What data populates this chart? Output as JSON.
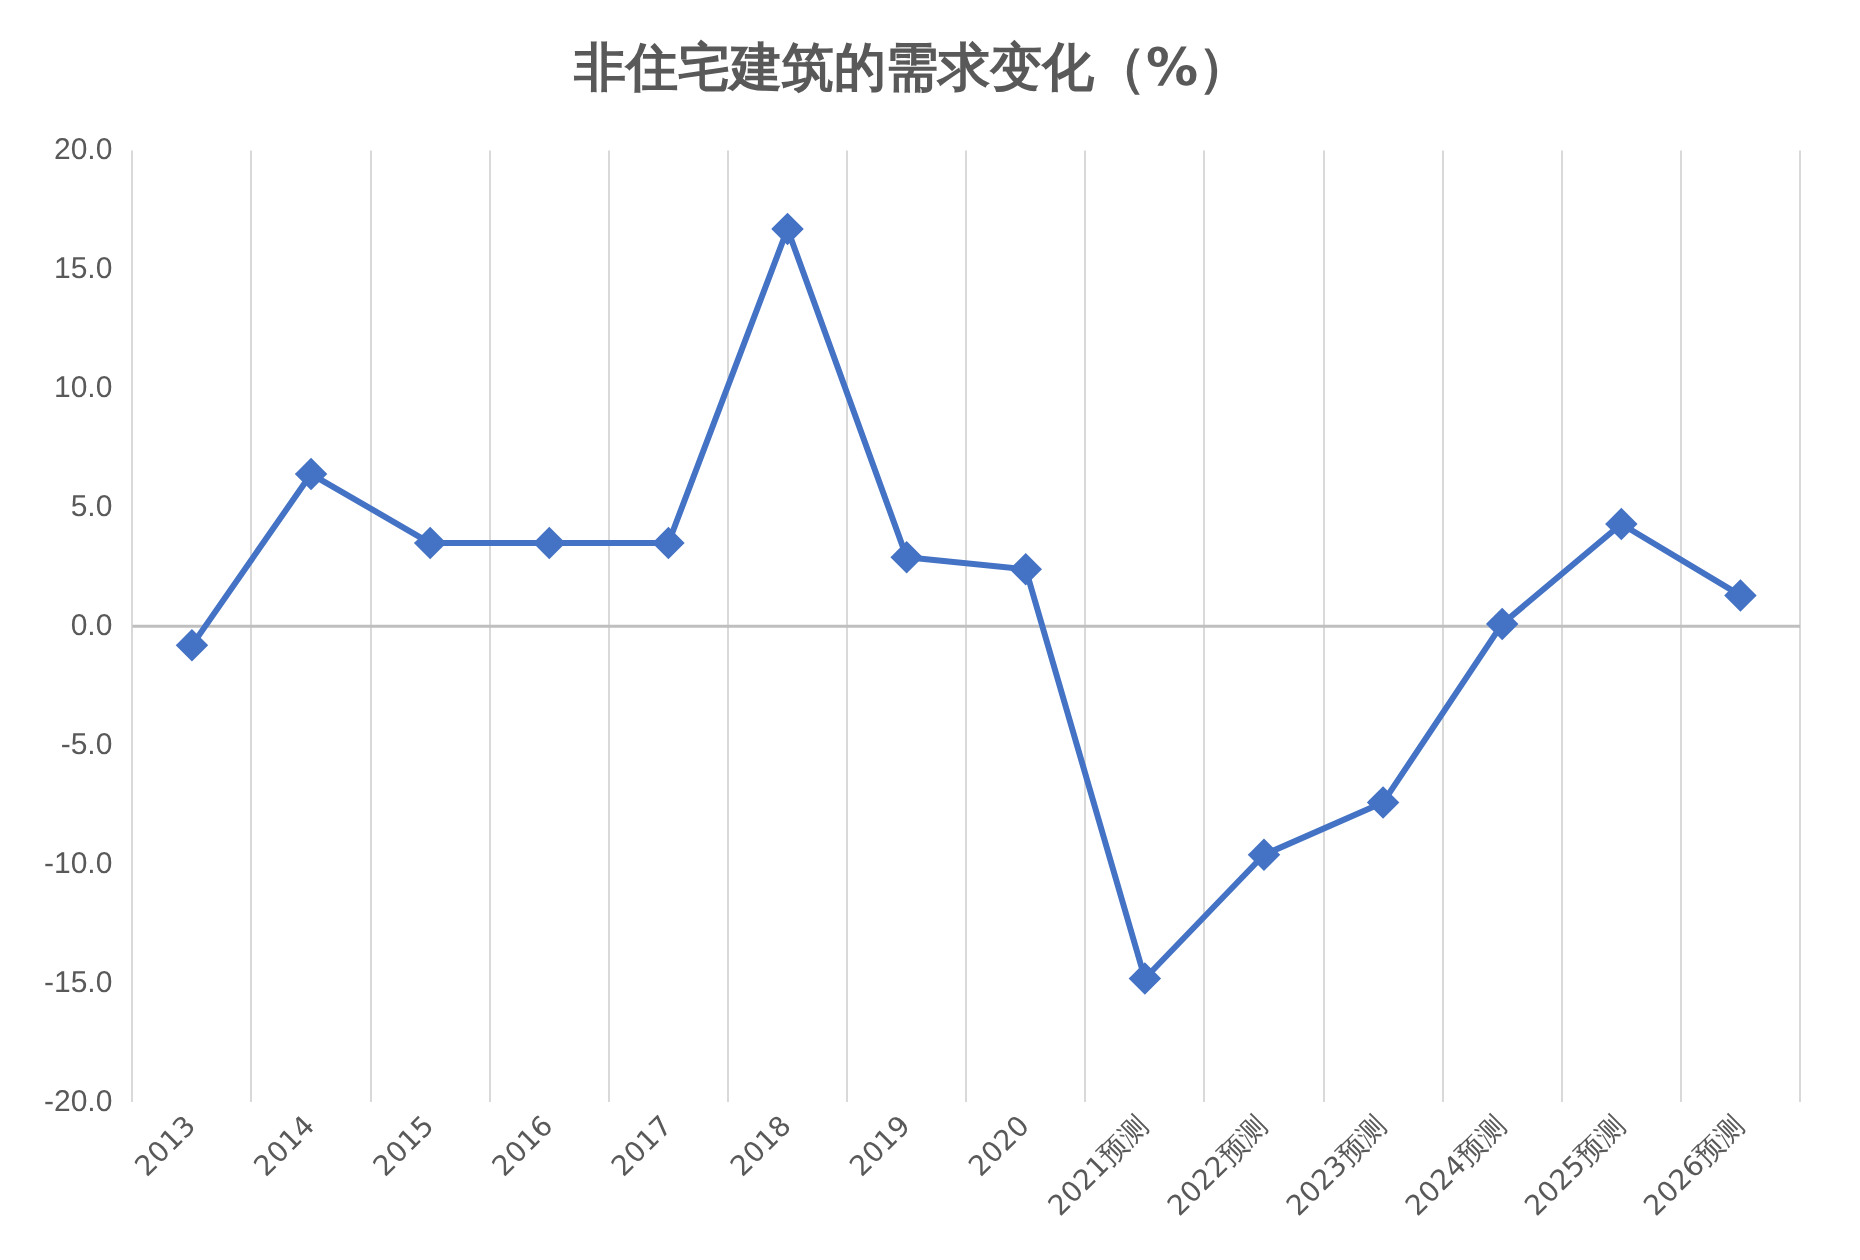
{
  "chart_data": {
    "type": "line",
    "title": "非住宅建筑的需求变化（%）",
    "categories": [
      "2013",
      "2014",
      "2015",
      "2016",
      "2017",
      "2018",
      "2019",
      "2020",
      "2021预测",
      "2022预测",
      "2023预测",
      "2024预测",
      "2025预测",
      "2026预测"
    ],
    "series": [
      {
        "color": "#4472c4",
        "values": [
          -0.8,
          6.4,
          3.5,
          3.5,
          3.5,
          16.7,
          2.9,
          2.4,
          -14.8,
          -9.6,
          -7.4,
          0.1,
          4.3,
          1.3
        ]
      }
    ],
    "ylim": [
      -20,
      20
    ],
    "yticks": [
      {
        "value": -20,
        "label": "-20.0"
      },
      {
        "value": -15,
        "label": "-15.0"
      },
      {
        "value": -10,
        "label": "-10.0"
      },
      {
        "value": -5,
        "label": "-5.0"
      },
      {
        "value": 0,
        "label": "0.0"
      },
      {
        "value": 5,
        "label": "5.0"
      },
      {
        "value": 10,
        "label": "10.0"
      },
      {
        "value": 15,
        "label": "15.0"
      },
      {
        "value": 20,
        "label": "20.0"
      }
    ],
    "grid": "x",
    "legend": false,
    "marker": "diamond",
    "line_style": "solid"
  }
}
